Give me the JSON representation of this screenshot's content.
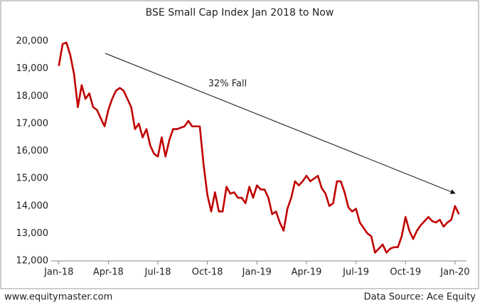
{
  "chart_data": {
    "type": "line",
    "title": "BSE Small Cap Index Jan 2018 to Now",
    "annotation": "32% Fall",
    "footer_left": "www.equitymaster.com",
    "footer_right": "Data Source: Ace Equity",
    "x": [
      0,
      1,
      2,
      3,
      4,
      5,
      6,
      7,
      8,
      9,
      10,
      11,
      12,
      13,
      14,
      15,
      16,
      17,
      18,
      19,
      20,
      21,
      22,
      23,
      24,
      25,
      26,
      27,
      28,
      29,
      30,
      31,
      32,
      33,
      34,
      35,
      36,
      37,
      38,
      39,
      40,
      41,
      42,
      43,
      44,
      45,
      46,
      47,
      48,
      49,
      50,
      51,
      52,
      53,
      54,
      55,
      56,
      57,
      58,
      59,
      60,
      61,
      62,
      63,
      64,
      65,
      66,
      67,
      68,
      69,
      70,
      71,
      72,
      73,
      74,
      75,
      76,
      77,
      78,
      79,
      80,
      81,
      82,
      83,
      84,
      85,
      86,
      87,
      88,
      89,
      90,
      91,
      92,
      93,
      94,
      95,
      96,
      97,
      98,
      99,
      100,
      101,
      102,
      103,
      104,
      105
    ],
    "series": [
      {
        "name": "BSE Small Cap",
        "color": "#c00000",
        "values": [
          19100,
          19900,
          19950,
          19500,
          18800,
          17600,
          18400,
          17900,
          18100,
          17600,
          17500,
          17200,
          16900,
          17500,
          17900,
          18200,
          18300,
          18200,
          17900,
          17600,
          16800,
          17000,
          16500,
          16800,
          16200,
          15900,
          15800,
          16500,
          15800,
          16400,
          16800,
          16800,
          16850,
          16900,
          17100,
          16900,
          16900,
          16900,
          15500,
          14400,
          13800,
          14500,
          13800,
          13800,
          14700,
          14450,
          14500,
          14300,
          14300,
          14100,
          14700,
          14300,
          14750,
          14600,
          14600,
          14300,
          13700,
          13800,
          13400,
          13100,
          13900,
          14300,
          14900,
          14750,
          14900,
          15100,
          14900,
          15000,
          15100,
          14650,
          14450,
          14000,
          14100,
          14900,
          14900,
          14500,
          13950,
          13800,
          13900,
          13400,
          13200,
          13000,
          12900,
          12300,
          12450,
          12600,
          12300,
          12450,
          12500,
          12500,
          12900,
          13600,
          13100,
          12800,
          13100,
          13300,
          13450,
          13600,
          13450,
          13400,
          13500,
          13250,
          13400,
          13500,
          14000,
          13700
        ]
      }
    ],
    "xlim": [
      -2,
      107
    ],
    "xticks": [
      {
        "value": 0,
        "label": "Jan-18"
      },
      {
        "value": 13,
        "label": "Apr-18"
      },
      {
        "value": 26,
        "label": "Jul-18"
      },
      {
        "value": 39,
        "label": "Oct-18"
      },
      {
        "value": 52,
        "label": "Jan-19"
      },
      {
        "value": 65,
        "label": "Apr-19"
      },
      {
        "value": 78,
        "label": "Jul-19"
      },
      {
        "value": 91,
        "label": "Oct-19"
      },
      {
        "value": 104,
        "label": "Jan-20"
      }
    ],
    "ylim": [
      12000,
      20000
    ],
    "yticks": [
      {
        "value": 12000,
        "label": "12,000"
      },
      {
        "value": 13000,
        "label": "13,000"
      },
      {
        "value": 14000,
        "label": "14,000"
      },
      {
        "value": 15000,
        "label": "15,000"
      },
      {
        "value": 16000,
        "label": "16,000"
      },
      {
        "value": 17000,
        "label": "17,000"
      },
      {
        "value": 18000,
        "label": "18,000"
      },
      {
        "value": 19000,
        "label": "19,000"
      },
      {
        "value": 20000,
        "label": "20,000"
      }
    ],
    "grid": false
  }
}
